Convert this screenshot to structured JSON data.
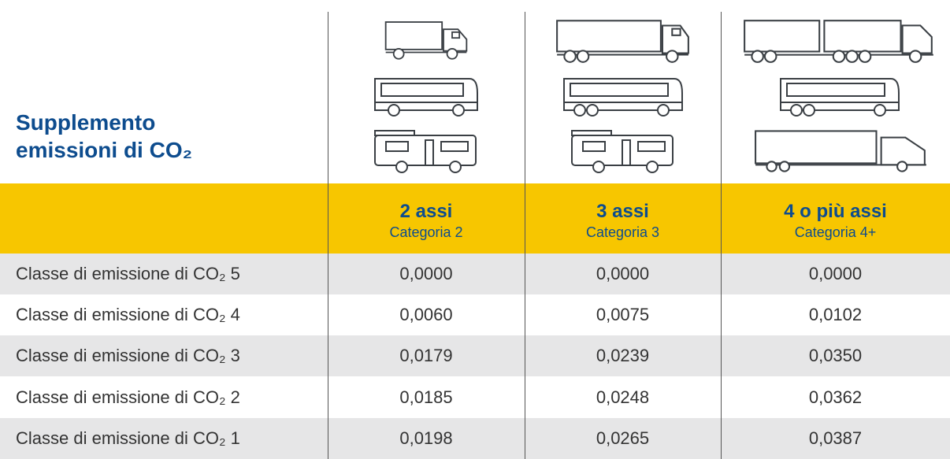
{
  "header": {
    "title": [
      "Supplemento",
      "emissioni di CO₂"
    ]
  },
  "table": {
    "columns": [
      {
        "axles": "2 assi",
        "category": "Categoria 2"
      },
      {
        "axles": "3 assi",
        "category": "Categoria 3"
      },
      {
        "axles": "4 o più assi",
        "category": "Categoria 4+"
      }
    ],
    "rows": [
      [
        "Classe di emissione di CO₂ 5",
        "0,0000",
        "0,0000",
        "0,0000"
      ],
      [
        "Classe di emissione di CO₂ 4",
        "0,0060",
        "0,0075",
        "0,0102"
      ],
      [
        "Classe di emissione di CO₂ 3",
        "0,0179",
        "0,0239",
        "0,0350"
      ],
      [
        "Classe di emissione di CO₂ 2",
        "0,0185",
        "0,0248",
        "0,0362"
      ],
      [
        "Classe di emissione di CO₂ 1",
        "0,0198",
        "0,0265",
        "0,0387"
      ]
    ]
  }
}
